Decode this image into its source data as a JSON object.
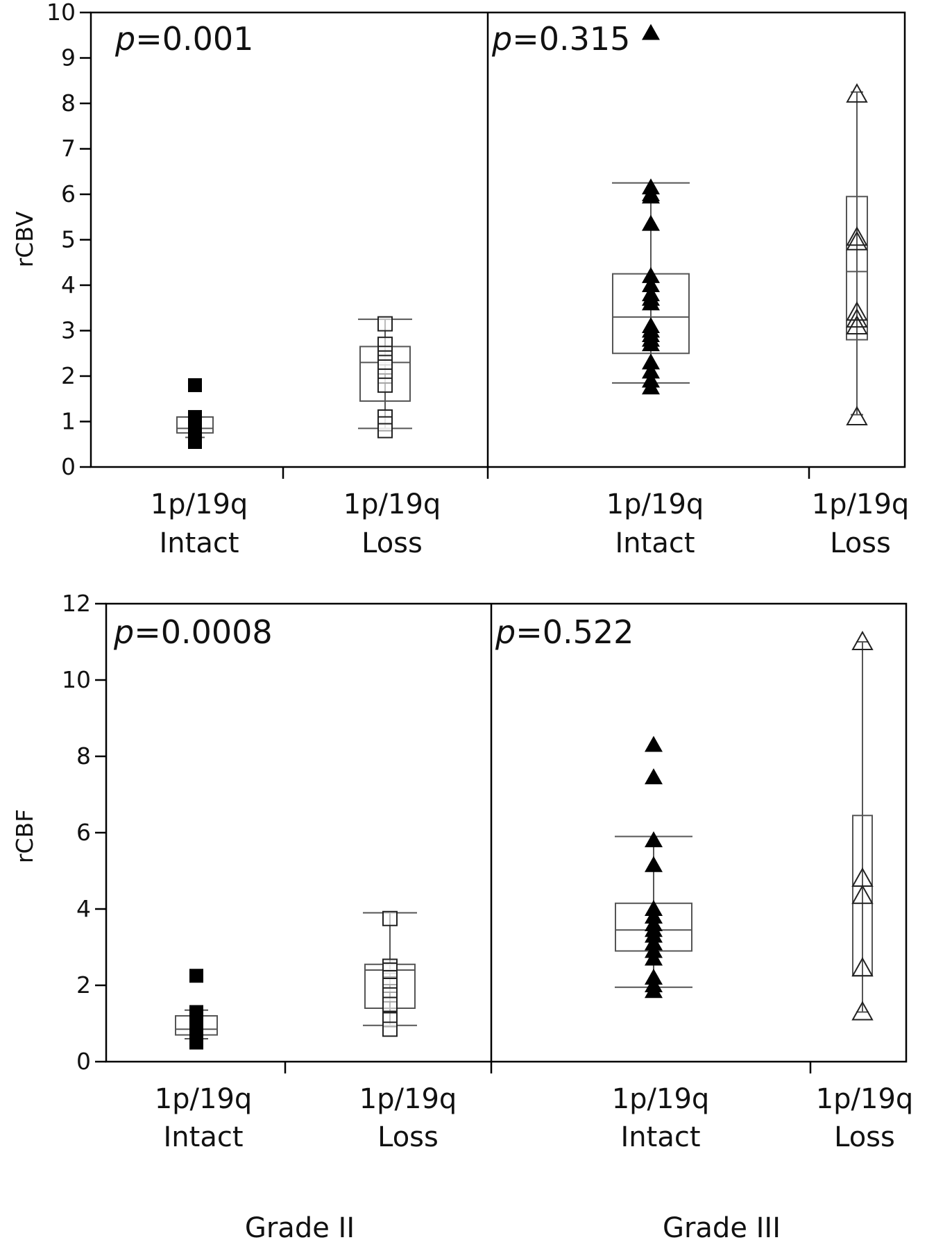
{
  "chart_data": [
    {
      "type": "box",
      "ylabel": "rCBV",
      "ylim": [
        0,
        10
      ],
      "yticks": [
        "0",
        "1",
        "2",
        "3",
        "4",
        "5",
        "6",
        "7",
        "8",
        "9",
        "10"
      ],
      "grid": false,
      "panels": [
        {
          "grade": "Grade II",
          "pvalue_prefix": "p",
          "pvalue": "=0.001",
          "groups": [
            {
              "label_line1": "1p/19q",
              "label_line2": "Intact",
              "marker": "filled-square",
              "box": {
                "q1": 0.75,
                "median": 0.85,
                "q3": 1.1,
                "whisker_low": 0.65,
                "whisker_high": 1.1
              },
              "points": [
                1.8,
                1.1,
                1.05,
                1.0,
                0.9,
                0.85,
                0.8,
                0.75,
                0.7,
                0.65,
                0.6,
                0.55
              ]
            },
            {
              "label_line1": "1p/19q",
              "label_line2": "Loss",
              "marker": "open-square",
              "box": {
                "q1": 1.45,
                "median": 2.3,
                "q3": 2.65,
                "whisker_low": 0.85,
                "whisker_high": 3.25
              },
              "points": [
                3.15,
                2.7,
                2.5,
                2.4,
                2.3,
                2.2,
                2.0,
                1.8,
                1.1,
                0.95,
                0.8
              ]
            }
          ]
        },
        {
          "grade": "Grade III",
          "pvalue_prefix": "p",
          "pvalue": "=0.315",
          "groups": [
            {
              "label_line1": "1p/19q",
              "label_line2": "Intact",
              "marker": "filled-triangle",
              "box": {
                "q1": 2.5,
                "median": 3.3,
                "q3": 4.25,
                "whisker_low": 1.85,
                "whisker_high": 6.25
              },
              "points": [
                9.55,
                6.15,
                6.0,
                5.95,
                5.35,
                4.2,
                4.0,
                3.8,
                3.7,
                3.6,
                3.1,
                3.0,
                2.9,
                2.8,
                2.7,
                2.3,
                2.1,
                1.9,
                1.75
              ]
            },
            {
              "label_line1": "1p/19q",
              "label_line2": "Loss",
              "marker": "open-triangle",
              "box": {
                "q1": 2.8,
                "median": 4.3,
                "q3": 5.95,
                "whisker_low": 1.15,
                "whisker_high": 8.25
              },
              "points": [
                8.2,
                5.05,
                4.95,
                3.4,
                3.25,
                3.1,
                1.1
              ]
            }
          ]
        }
      ]
    },
    {
      "type": "box",
      "ylabel": "rCBF",
      "ylim": [
        0,
        12
      ],
      "yticks": [
        "0",
        "2",
        "4",
        "6",
        "8",
        "10",
        "12"
      ],
      "grid": false,
      "panels": [
        {
          "grade": "Grade II",
          "pvalue_prefix": "p",
          "pvalue": "=0.0008",
          "groups": [
            {
              "label_line1": "1p/19q",
              "label_line2": "Intact",
              "marker": "filled-square",
              "box": {
                "q1": 0.7,
                "median": 0.85,
                "q3": 1.2,
                "whisker_low": 0.6,
                "whisker_high": 1.35
              },
              "points": [
                2.25,
                1.3,
                1.2,
                1.1,
                1.0,
                0.9,
                0.8,
                0.7,
                0.6,
                0.5
              ]
            },
            {
              "label_line1": "1p/19q",
              "label_line2": "Loss",
              "marker": "open-square",
              "box": {
                "q1": 1.4,
                "median": 2.4,
                "q3": 2.55,
                "whisker_low": 0.95,
                "whisker_high": 3.9
              },
              "points": [
                3.75,
                2.5,
                2.4,
                2.2,
                2.0,
                1.75,
                1.5,
                1.1,
                0.85
              ]
            }
          ]
        },
        {
          "grade": "Grade III",
          "pvalue_prefix": "p",
          "pvalue": "=0.522",
          "groups": [
            {
              "label_line1": "1p/19q",
              "label_line2": "Intact",
              "marker": "filled-triangle",
              "box": {
                "q1": 2.9,
                "median": 3.45,
                "q3": 4.15,
                "whisker_low": 1.95,
                "whisker_high": 5.9
              },
              "points": [
                8.3,
                7.45,
                5.8,
                5.15,
                4.0,
                3.8,
                3.6,
                3.45,
                3.3,
                3.1,
                2.9,
                2.7,
                2.2,
                2.0,
                1.85
              ]
            },
            {
              "label_line1": "1p/19q",
              "label_line2": "Loss",
              "marker": "open-triangle",
              "box": {
                "q1": 2.25,
                "median": 4.6,
                "q3": 6.45,
                "whisker_low": 1.3,
                "whisker_high": 11.0
              },
              "points": [
                11.0,
                4.8,
                4.35,
                2.45,
                1.3
              ]
            }
          ]
        }
      ]
    }
  ],
  "grades": [
    "Grade II",
    "Grade III"
  ]
}
